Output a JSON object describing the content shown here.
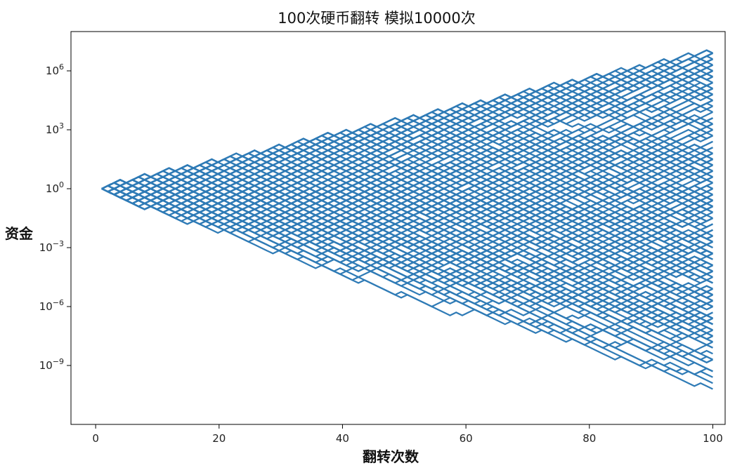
{
  "chart_data": {
    "type": "line",
    "title": "100次硬币翻转 模拟10000次",
    "xlabel": "翻转次数",
    "ylabel": "资金",
    "xlim": [
      -4,
      102
    ],
    "ylim_exponent": [
      -12,
      8
    ],
    "yscale": "log",
    "grid": false,
    "x_ticks": [
      0,
      20,
      40,
      60,
      80,
      100
    ],
    "x_tick_labels": [
      "0",
      "20",
      "40",
      "60",
      "80",
      "100"
    ],
    "y_tick_exponents": [
      -9,
      -6,
      -3,
      0,
      3,
      6
    ],
    "y_tick_base": "10",
    "y_tick_superscripts": [
      "−9",
      "−6",
      "−3",
      "0",
      "3",
      "6"
    ],
    "series_color": "#2f7bb6",
    "num_simulations": 10000,
    "steps": 100,
    "start_x": 1,
    "start_value": 1,
    "step_factor_exponent": 0.15,
    "upper_envelope_final_exponent": 6.9,
    "lower_envelope_final_exponent": -10.8
  }
}
